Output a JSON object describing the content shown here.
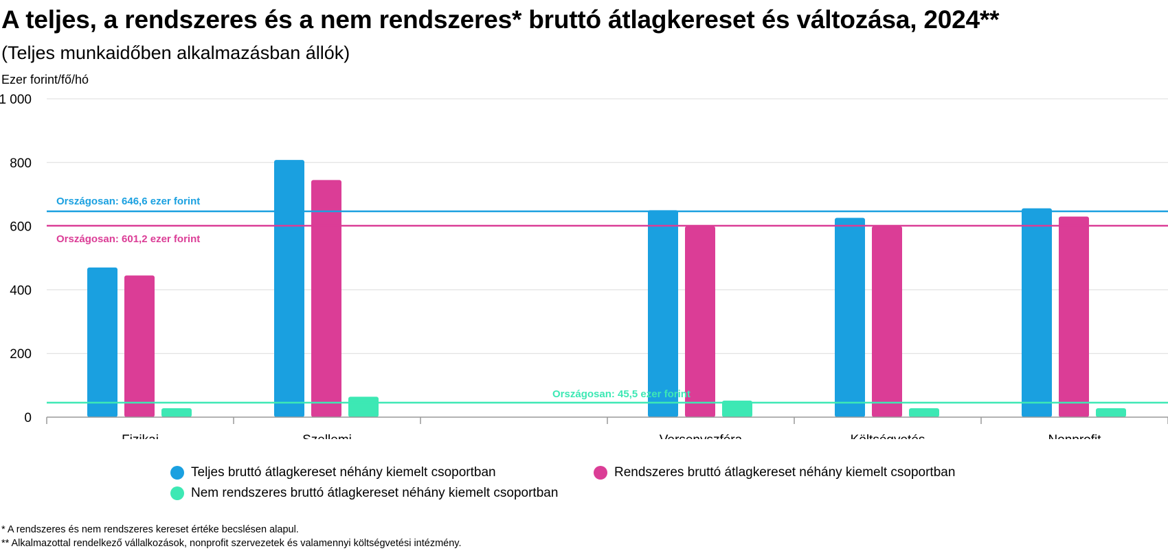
{
  "title": "A teljes, a rendszeres és a nem rendszeres* bruttó átlagkereset és változása, 2024**",
  "subtitle": "(Teljes munkaidőben alkalmazásban állók)",
  "unit_label": "Ezer forint/fő/hó",
  "colors": {
    "teljes": "#1aa0e0",
    "rendszeres": "#db3d96",
    "nem_rendszeres": "#3de8b4",
    "grid": "#dcdcdc",
    "axis": "#999999"
  },
  "chart_data": {
    "type": "bar",
    "categories": [
      "Fizikai",
      "Szellemi",
      "",
      "Versenyszféra",
      "Költségvetés",
      "Nonprofit"
    ],
    "series": [
      {
        "name": "Teljes bruttó átlagkereset néhány kiemelt csoportban",
        "key": "teljes",
        "values": [
          470,
          808,
          null,
          650,
          626,
          656
        ]
      },
      {
        "name": "Rendszeres bruttó átlagkereset néhány kiemelt csoportban",
        "key": "rendszeres",
        "values": [
          445,
          745,
          null,
          600,
          600,
          630
        ]
      },
      {
        "name": "Nem rendszeres bruttó átlagkereset néhány kiemelt csoportban",
        "key": "nem_rendszeres",
        "values": [
          28,
          64,
          null,
          52,
          28,
          28
        ]
      }
    ],
    "y_ticks": [
      "0",
      "200",
      "400",
      "600",
      "800",
      "1 000"
    ],
    "ylim": [
      0,
      1000
    ],
    "grid": true,
    "legend_position": "bottom",
    "reference_lines": [
      {
        "value": 646.6,
        "key": "teljes",
        "label": "Országosan: 646,6 ezer forint"
      },
      {
        "value": 601.2,
        "key": "rendszeres",
        "label": "Országosan: 601,2 ezer forint"
      },
      {
        "value": 45.5,
        "key": "nem_rendszeres",
        "label": "Országosan: 45,5 ezer forint"
      }
    ]
  },
  "footnotes": [
    "* A rendszeres és nem rendszeres kereset értéke becslésen alapul.",
    "** Alkalmazottal rendelkező vállalkozások, nonprofit szervezetek és valamennyi költségvetési intézmény."
  ]
}
